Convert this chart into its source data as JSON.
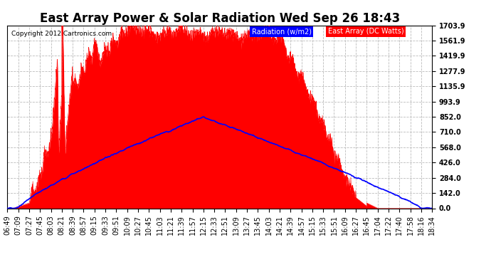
{
  "title": "East Array Power & Solar Radiation Wed Sep 26 18:43",
  "copyright": "Copyright 2012 Cartronics.com",
  "legend_radiation": "Radiation (w/m2)",
  "legend_east_array": "East Array (DC Watts)",
  "yticks": [
    0.0,
    142.0,
    284.0,
    426.0,
    568.0,
    710.0,
    852.0,
    993.9,
    1135.9,
    1277.9,
    1419.9,
    1561.9,
    1703.9
  ],
  "ymax": 1703.9,
  "ymin": 0.0,
  "background_color": "#ffffff",
  "plot_bg_color": "#ffffff",
  "grid_color": "#bbbbbb",
  "radiation_color": "#0000ff",
  "east_array_color": "#ff0000",
  "title_fontsize": 12,
  "tick_fontsize": 7,
  "x_labels": [
    "06:49",
    "07:09",
    "07:27",
    "07:45",
    "08:03",
    "08:21",
    "08:39",
    "08:57",
    "09:15",
    "09:33",
    "09:51",
    "10:09",
    "10:27",
    "10:45",
    "11:03",
    "11:21",
    "11:39",
    "11:57",
    "12:15",
    "12:33",
    "12:51",
    "13:09",
    "13:27",
    "13:45",
    "14:03",
    "14:21",
    "14:39",
    "14:57",
    "15:15",
    "15:33",
    "15:51",
    "16:09",
    "16:27",
    "16:45",
    "17:04",
    "17:22",
    "17:40",
    "17:58",
    "18:16",
    "18:34"
  ]
}
